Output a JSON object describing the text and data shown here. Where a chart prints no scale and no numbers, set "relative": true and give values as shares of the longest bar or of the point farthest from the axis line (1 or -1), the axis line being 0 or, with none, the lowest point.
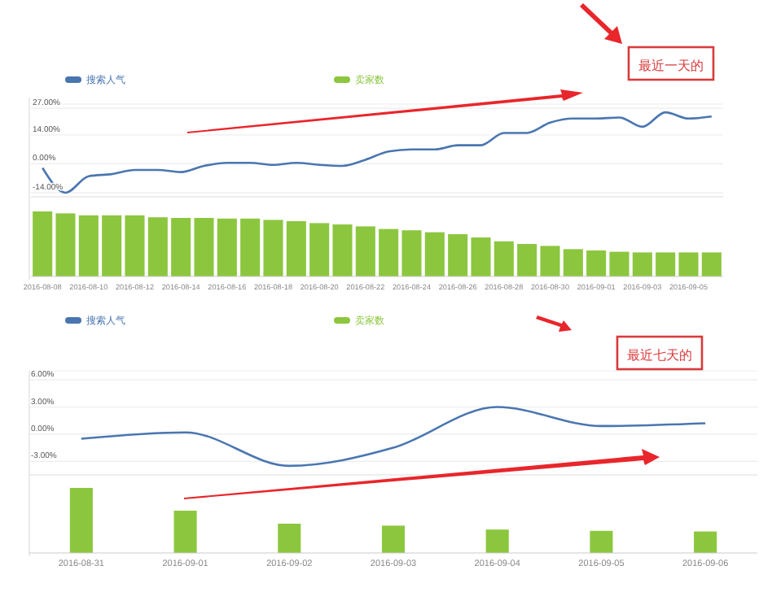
{
  "chart_data": [
    {
      "type": "line",
      "categories": [
        null,
        null,
        null,
        null,
        null,
        null,
        null,
        null,
        null,
        null,
        null,
        null,
        null,
        null,
        null,
        null,
        null,
        null,
        null,
        null,
        null,
        null,
        null,
        null,
        null,
        null,
        null,
        null,
        null,
        null
      ],
      "series": [
        {
          "name": "搜索人气",
          "color": "#4a76b0",
          "values": [
            -2,
            -14,
            -6,
            -5,
            -3,
            -3,
            -4,
            -1,
            0.5,
            0.5,
            -0.5,
            0.5,
            -0.5,
            -1,
            2,
            6,
            7,
            7,
            9,
            9,
            15,
            15,
            20,
            22,
            22,
            22.5,
            18,
            25,
            22,
            23
          ]
        }
      ],
      "ylim": [
        -16,
        29
      ],
      "yticks": [
        {
          "value": 27,
          "label": "27.00%"
        },
        {
          "value": 14,
          "label": "14.00%"
        },
        {
          "value": 0,
          "label": "0.00%"
        },
        {
          "value": -14,
          "label": "-14.00%"
        }
      ],
      "grid": "y",
      "tick_labels": "y",
      "legend": "top left",
      "annotations": [
        "最近一天的"
      ]
    },
    {
      "type": "bar",
      "relative": true,
      "categories": [
        "2016-08-08",
        null,
        "2016-08-10",
        null,
        "2016-08-12",
        null,
        "2016-08-14",
        null,
        "2016-08-16",
        null,
        "2016-08-18",
        null,
        "2016-08-20",
        null,
        "2016-08-22",
        null,
        "2016-08-24",
        null,
        "2016-08-26",
        null,
        "2016-08-28",
        null,
        "2016-08-30",
        null,
        "2016-09-01",
        null,
        "2016-09-03",
        null,
        "2016-09-05",
        null
      ],
      "series": [
        {
          "name": "卖家数",
          "color": "#8cc63f",
          "values": [
            1,
            0.97,
            0.94,
            0.94,
            0.94,
            0.91,
            0.9,
            0.9,
            0.89,
            0.89,
            0.87,
            0.85,
            0.82,
            0.8,
            0.77,
            0.73,
            0.71,
            0.68,
            0.65,
            0.6,
            0.54,
            0.5,
            0.47,
            0.42,
            0.4,
            0.38,
            0.37,
            0.37,
            0.37,
            0.37
          ]
        }
      ],
      "legend": "top"
    },
    {
      "type": "line",
      "categories": [
        null,
        null,
        null,
        null,
        null,
        null,
        null
      ],
      "series": [
        {
          "name": "搜索人气",
          "color": "#4a76b0",
          "values": [
            -0.5,
            0.2,
            -3.5,
            -1.5,
            3,
            0.9,
            1.2
          ]
        }
      ],
      "ylim": [
        -4.5,
        7
      ],
      "yticks": [
        {
          "value": 6,
          "label": "6.00%"
        },
        {
          "value": 3,
          "label": "3.00%"
        },
        {
          "value": 0,
          "label": "0.00%"
        },
        {
          "value": -3,
          "label": "-3.00%"
        }
      ],
      "grid": "y",
      "tick_labels": "y",
      "legend": "top left",
      "annotations": [
        "最近七天的"
      ]
    },
    {
      "type": "bar",
      "relative": true,
      "categories": [
        "2016-08-31",
        "2016-09-01",
        "2016-09-02",
        "2016-09-03",
        "2016-09-04",
        "2016-09-05",
        "2016-09-06"
      ],
      "series": [
        {
          "name": "卖家数",
          "color": "#8cc63f",
          "values": [
            1,
            0.65,
            0.45,
            0.42,
            0.36,
            0.34,
            0.33
          ]
        }
      ],
      "legend": "top"
    }
  ]
}
